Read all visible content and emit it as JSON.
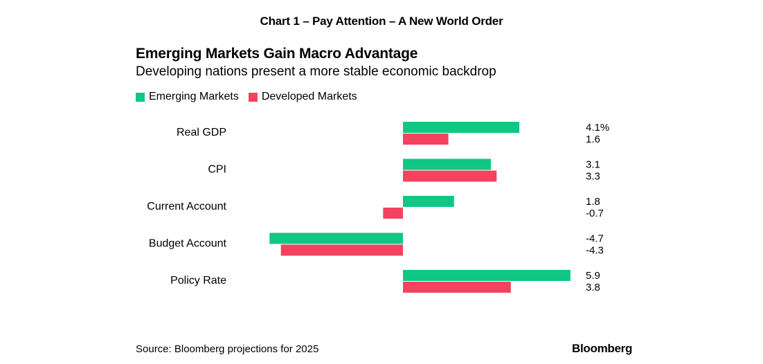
{
  "header": "Chart 1 –  Pay Attention – A New World Order",
  "title": "Emerging Markets Gain Macro Advantage",
  "subtitle": "Developing nations present a more stable economic backdrop",
  "source": "Source: Bloomberg projections for 2025",
  "brand": "Bloomberg",
  "colors": {
    "emerging": "#10c784",
    "developed": "#f5425e"
  },
  "chart_data": {
    "type": "bar",
    "orientation": "horizontal",
    "title": "Emerging Markets Gain Macro Advantage",
    "subtitle": "Developing nations present a more stable economic backdrop",
    "categories": [
      "Real GDP",
      "CPI",
      "Current Account",
      "Budget Account",
      "Policy Rate"
    ],
    "series": [
      {
        "name": "Emerging Markets",
        "values": [
          4.1,
          3.1,
          1.8,
          -4.7,
          5.9
        ],
        "labels": [
          "4.1%",
          "3.1",
          "1.8",
          "-4.7",
          "5.9"
        ]
      },
      {
        "name": "Developed Markets",
        "values": [
          1.6,
          3.3,
          -0.7,
          -4.3,
          3.8
        ],
        "labels": [
          "1.6",
          "3.3",
          "-0.7",
          "-4.3",
          "3.8"
        ]
      }
    ],
    "xlim": [
      -4.7,
      5.9
    ],
    "legend": "top-left",
    "grid": false
  }
}
